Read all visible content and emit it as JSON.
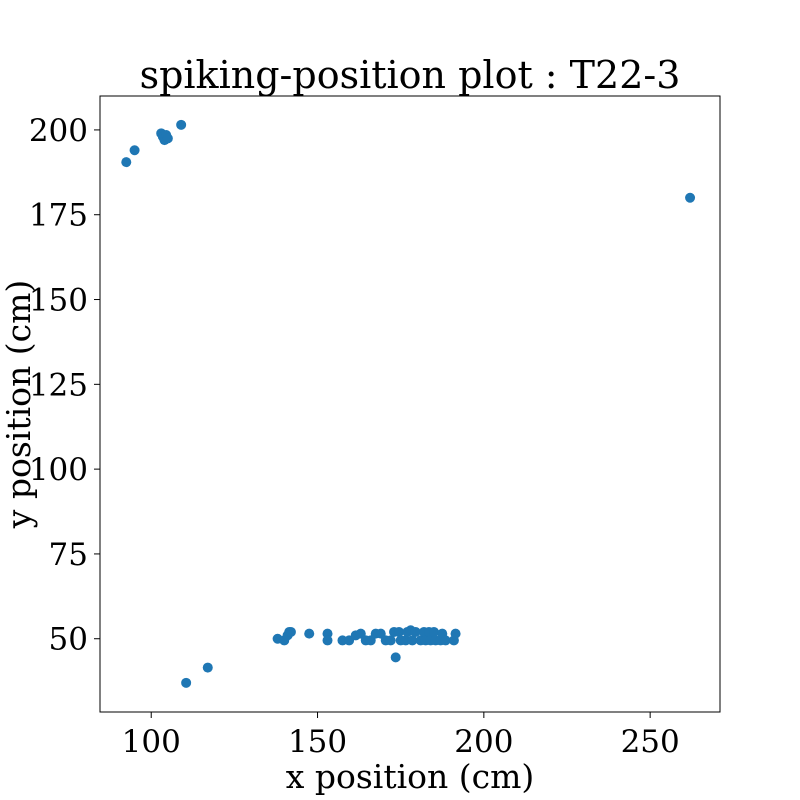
{
  "chart_data": {
    "type": "scatter",
    "title": "spiking-position plot : T22-3",
    "xlabel": "x position (cm)",
    "ylabel": "y position (cm)",
    "xlim": [
      84.6,
      271.0
    ],
    "ylim": [
      28.4,
      210.0
    ],
    "xticks": [
      100,
      150,
      200,
      250
    ],
    "yticks": [
      50,
      75,
      100,
      125,
      150,
      175,
      200
    ],
    "marker_color": "#1f77b4",
    "grid": false,
    "points": [
      {
        "x": 92.5,
        "y": 190.5
      },
      {
        "x": 95.0,
        "y": 194.0
      },
      {
        "x": 103.0,
        "y": 199.0
      },
      {
        "x": 103.5,
        "y": 198.0
      },
      {
        "x": 104.0,
        "y": 197.0
      },
      {
        "x": 104.5,
        "y": 198.5
      },
      {
        "x": 105.0,
        "y": 197.5
      },
      {
        "x": 109.0,
        "y": 201.5
      },
      {
        "x": 262.0,
        "y": 180.0
      },
      {
        "x": 110.5,
        "y": 37.0
      },
      {
        "x": 117.0,
        "y": 41.5
      },
      {
        "x": 138.0,
        "y": 50.0
      },
      {
        "x": 140.0,
        "y": 49.5
      },
      {
        "x": 141.0,
        "y": 51.0
      },
      {
        "x": 141.5,
        "y": 52.0
      },
      {
        "x": 142.0,
        "y": 52.0
      },
      {
        "x": 147.5,
        "y": 51.5
      },
      {
        "x": 153.0,
        "y": 51.5
      },
      {
        "x": 153.0,
        "y": 49.5
      },
      {
        "x": 157.5,
        "y": 49.5
      },
      {
        "x": 159.5,
        "y": 49.5
      },
      {
        "x": 161.5,
        "y": 51.0
      },
      {
        "x": 163.0,
        "y": 51.5
      },
      {
        "x": 164.5,
        "y": 49.5
      },
      {
        "x": 166.0,
        "y": 49.5
      },
      {
        "x": 167.5,
        "y": 51.5
      },
      {
        "x": 169.0,
        "y": 51.5
      },
      {
        "x": 170.5,
        "y": 49.5
      },
      {
        "x": 172.0,
        "y": 49.5
      },
      {
        "x": 173.0,
        "y": 52.0
      },
      {
        "x": 174.5,
        "y": 52.0
      },
      {
        "x": 175.0,
        "y": 49.5
      },
      {
        "x": 176.5,
        "y": 49.5
      },
      {
        "x": 177.0,
        "y": 52.0
      },
      {
        "x": 178.0,
        "y": 52.5
      },
      {
        "x": 178.5,
        "y": 49.5
      },
      {
        "x": 179.5,
        "y": 52.0
      },
      {
        "x": 181.0,
        "y": 49.5
      },
      {
        "x": 182.0,
        "y": 52.0
      },
      {
        "x": 182.5,
        "y": 49.5
      },
      {
        "x": 183.5,
        "y": 52.0
      },
      {
        "x": 184.0,
        "y": 49.5
      },
      {
        "x": 185.0,
        "y": 52.0
      },
      {
        "x": 185.5,
        "y": 49.5
      },
      {
        "x": 187.0,
        "y": 49.5
      },
      {
        "x": 187.5,
        "y": 51.5
      },
      {
        "x": 188.5,
        "y": 49.5
      },
      {
        "x": 191.0,
        "y": 49.5
      },
      {
        "x": 191.5,
        "y": 51.5
      },
      {
        "x": 173.5,
        "y": 44.5
      }
    ]
  }
}
